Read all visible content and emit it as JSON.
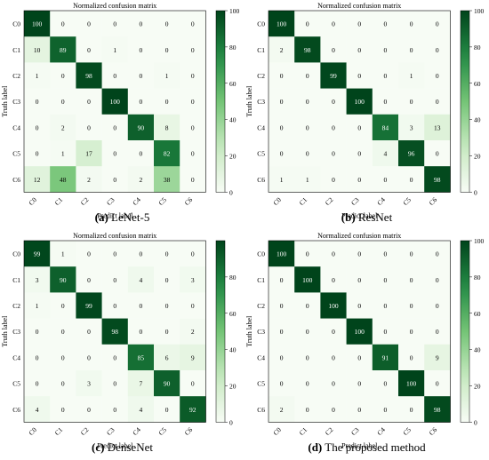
{
  "chart_data": [
    {
      "type": "heatmap",
      "title": "Normalized confusion matrix",
      "xlabel": "Predict label",
      "ylabel": "Truth label",
      "x_categories": [
        "C0",
        "C1",
        "C2",
        "C3",
        "C4",
        "C5",
        "C6"
      ],
      "y_categories": [
        "C0",
        "C1",
        "C2",
        "C3",
        "C4",
        "C5",
        "C6"
      ],
      "colorbar": {
        "ticks": [
          0,
          20,
          40,
          60,
          80,
          100
        ],
        "range": [
          0,
          100
        ]
      },
      "caption_tag": "(a)",
      "caption_text": "LeNet-5",
      "values": [
        [
          100,
          0,
          0,
          0,
          0,
          0,
          0
        ],
        [
          10,
          89,
          0,
          1,
          0,
          0,
          0
        ],
        [
          1,
          0,
          98,
          0,
          0,
          1,
          0
        ],
        [
          0,
          0,
          0,
          100,
          0,
          0,
          0
        ],
        [
          0,
          2,
          0,
          0,
          90,
          8,
          0
        ],
        [
          0,
          1,
          17,
          0,
          0,
          82,
          0
        ],
        [
          12,
          48,
          2,
          0,
          2,
          38,
          0
        ]
      ]
    },
    {
      "type": "heatmap",
      "title": "Normalized confusion matrix",
      "xlabel": "Predict label",
      "ylabel": "Truth label",
      "x_categories": [
        "C0",
        "C1",
        "C2",
        "C3",
        "C4",
        "C5",
        "C6"
      ],
      "y_categories": [
        "C0",
        "C1",
        "C2",
        "C3",
        "C4",
        "C5",
        "C6"
      ],
      "colorbar": {
        "ticks": [
          0,
          20,
          40,
          60,
          80,
          100
        ],
        "range": [
          0,
          100
        ]
      },
      "caption_tag": "(b)",
      "caption_text": "ResNet",
      "values": [
        [
          100,
          0,
          0,
          0,
          0,
          0,
          0
        ],
        [
          2,
          98,
          0,
          0,
          0,
          0,
          0
        ],
        [
          0,
          0,
          99,
          0,
          0,
          1,
          0
        ],
        [
          0,
          0,
          0,
          100,
          0,
          0,
          0
        ],
        [
          0,
          0,
          0,
          0,
          84,
          3,
          13
        ],
        [
          0,
          0,
          0,
          0,
          4,
          96,
          0
        ],
        [
          1,
          1,
          0,
          0,
          0,
          0,
          98
        ]
      ]
    },
    {
      "type": "heatmap",
      "title": "Normalized confusion matrix",
      "xlabel": "Predict label",
      "ylabel": "Truth label",
      "x_categories": [
        "C0",
        "C1",
        "C2",
        "C3",
        "C4",
        "C5",
        "C6"
      ],
      "y_categories": [
        "C0",
        "C1",
        "C2",
        "C3",
        "C4",
        "C5",
        "C6"
      ],
      "colorbar": {
        "ticks": [
          0,
          20,
          40,
          60,
          80
        ],
        "range": [
          0,
          100
        ]
      },
      "caption_tag": "(c)",
      "caption_text": "DenseNet",
      "values": [
        [
          99,
          1,
          0,
          0,
          0,
          0,
          0
        ],
        [
          3,
          90,
          0,
          0,
          4,
          0,
          3
        ],
        [
          1,
          0,
          99,
          0,
          0,
          0,
          0
        ],
        [
          0,
          0,
          0,
          98,
          0,
          0,
          2
        ],
        [
          0,
          0,
          0,
          0,
          85,
          6,
          9
        ],
        [
          0,
          0,
          3,
          0,
          7,
          90,
          0
        ],
        [
          4,
          0,
          0,
          0,
          4,
          0,
          92
        ]
      ]
    },
    {
      "type": "heatmap",
      "title": "Normalized confusion matrix",
      "xlabel": "Predict label",
      "ylabel": "Truth label",
      "x_categories": [
        "C0",
        "C1",
        "C2",
        "C3",
        "C4",
        "C5",
        "C6"
      ],
      "y_categories": [
        "C0",
        "C1",
        "C2",
        "C3",
        "C4",
        "C5",
        "C6"
      ],
      "colorbar": {
        "ticks": [
          0,
          20,
          40,
          60,
          80,
          100
        ],
        "range": [
          0,
          100
        ]
      },
      "caption_tag": "(d)",
      "caption_text": "The proposed method",
      "values": [
        [
          100,
          0,
          0,
          0,
          0,
          0,
          0
        ],
        [
          0,
          100,
          0,
          0,
          0,
          0,
          0
        ],
        [
          0,
          0,
          100,
          0,
          0,
          0,
          0
        ],
        [
          0,
          0,
          0,
          100,
          0,
          0,
          0
        ],
        [
          0,
          0,
          0,
          0,
          91,
          0,
          9
        ],
        [
          0,
          0,
          0,
          0,
          0,
          100,
          0
        ],
        [
          2,
          0,
          0,
          0,
          0,
          0,
          98
        ]
      ]
    }
  ]
}
